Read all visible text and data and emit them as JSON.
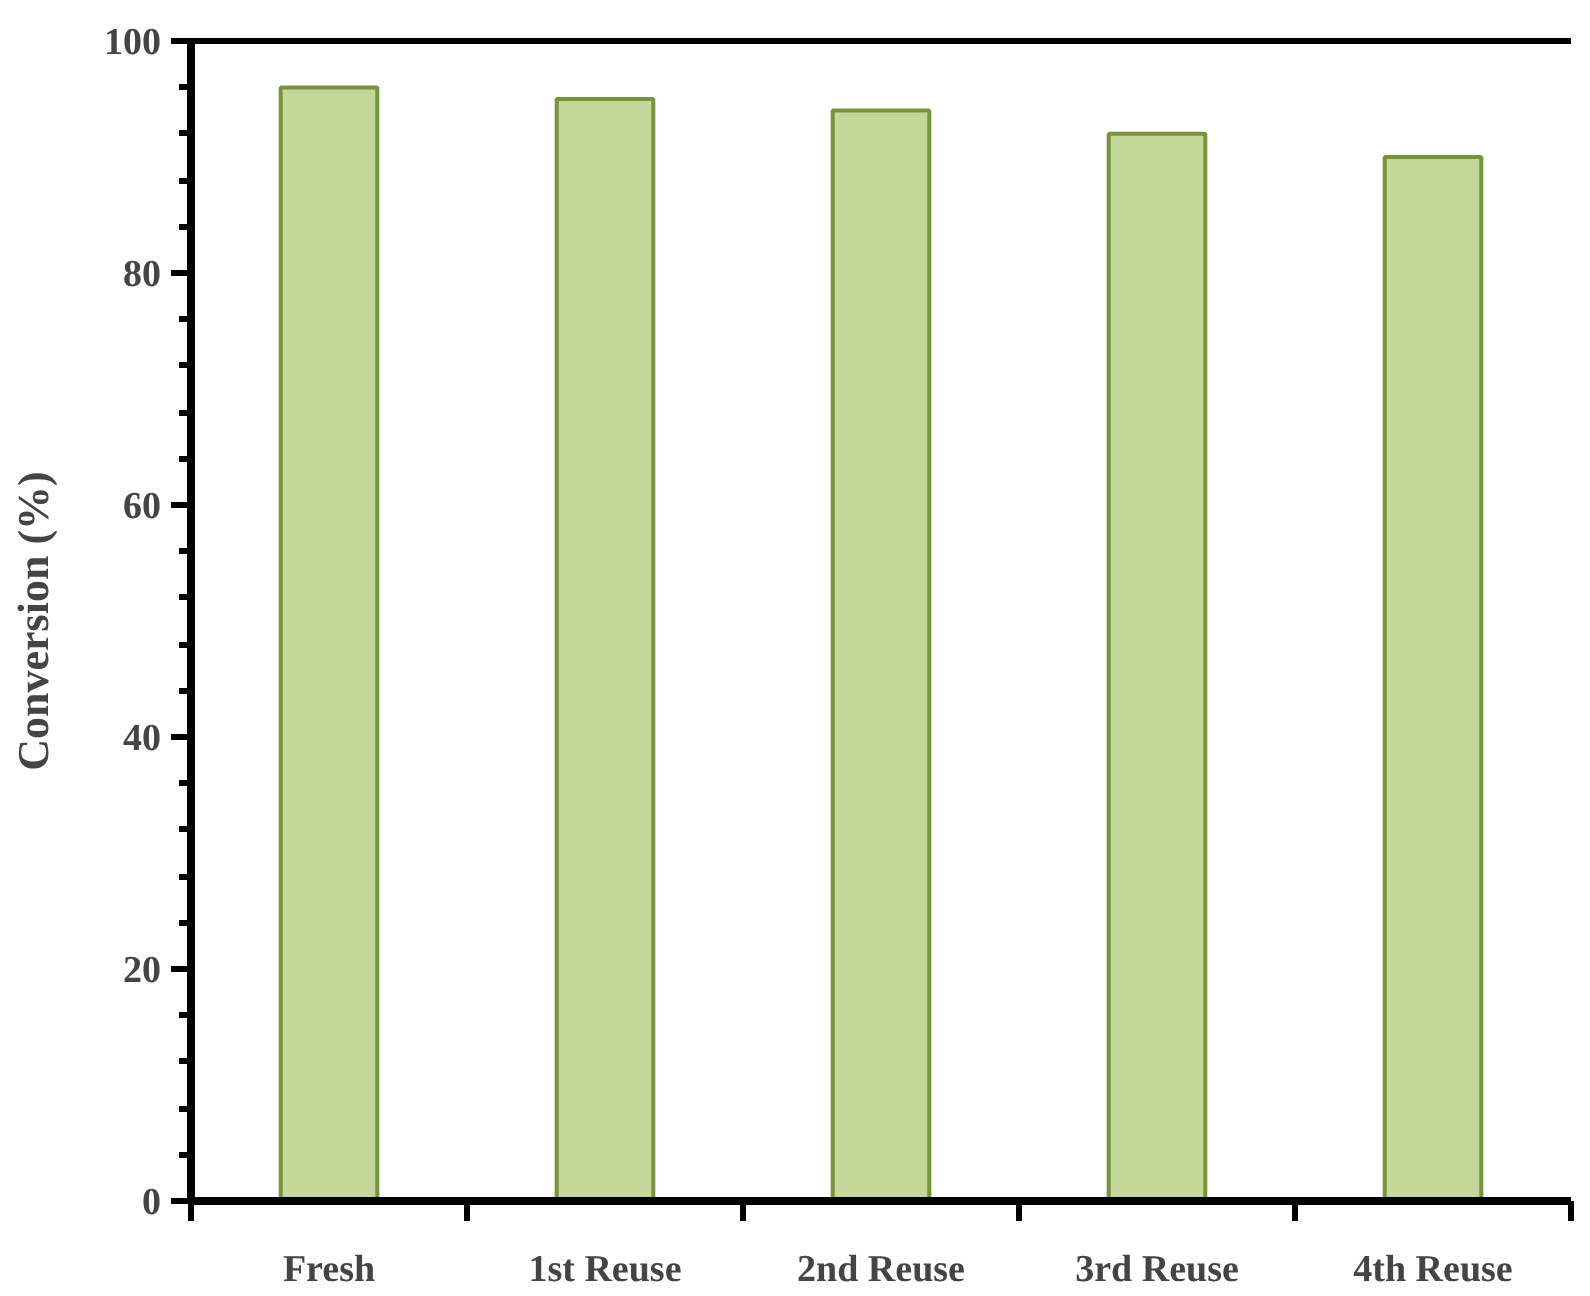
{
  "chart_data": {
    "type": "bar",
    "ylabel": "Conversion (%)",
    "categories": [
      "Fresh",
      "1st Reuse",
      "2nd Reuse",
      "3rd Reuse",
      "4th Reuse"
    ],
    "values": [
      96,
      95,
      94,
      92,
      90
    ],
    "color": "#c4d79b",
    "ylim": [
      0,
      100
    ],
    "yticks": [
      0,
      20,
      40,
      60,
      80,
      100
    ],
    "grid": false
  }
}
